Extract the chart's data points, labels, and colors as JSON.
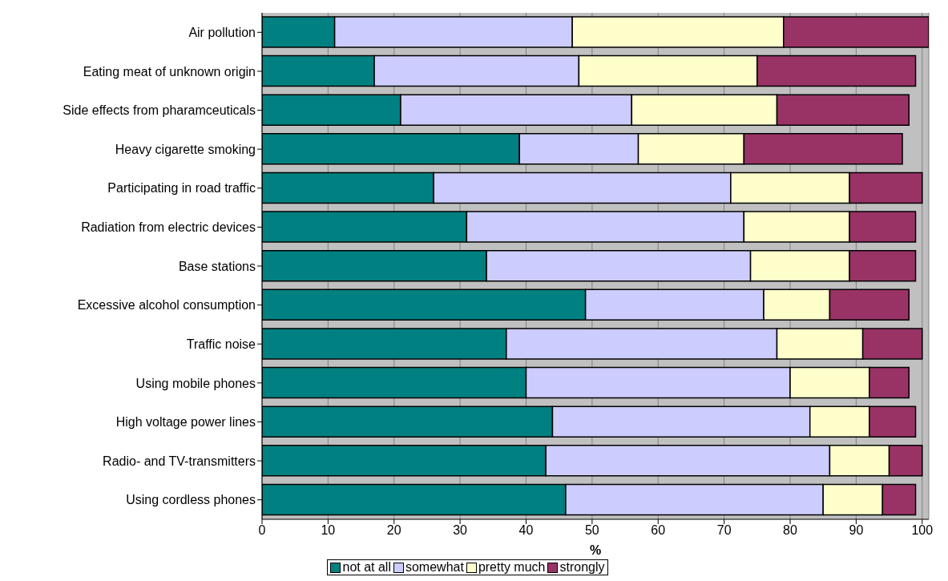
{
  "chart_data": {
    "type": "bar",
    "orientation": "horizontal",
    "stacked": true,
    "xlabel": "%",
    "categories": [
      "Air pollution",
      "Eating meat of unknown origin",
      "Side effects from pharamceuticals",
      "Heavy cigarette smoking",
      "Participating in road traffic",
      "Radiation from electric devices",
      "Base stations",
      "Excessive alcohol consumption",
      "Traffic noise",
      "Using mobile phones",
      "High voltage power lines",
      "Radio- and TV-transmitters",
      "Using cordless phones"
    ],
    "series": [
      {
        "name": "not at all",
        "color": "#008080",
        "values": [
          11,
          17,
          21,
          39,
          26,
          31,
          34,
          49,
          37,
          40,
          44,
          43,
          46
        ]
      },
      {
        "name": "somewhat",
        "color": "#ccccff",
        "values": [
          36,
          31,
          35,
          18,
          45,
          42,
          40,
          27,
          41,
          40,
          39,
          43,
          39
        ]
      },
      {
        "name": "pretty much",
        "color": "#ffffcc",
        "values": [
          32,
          27,
          22,
          16,
          18,
          16,
          15,
          10,
          13,
          12,
          9,
          9,
          9
        ]
      },
      {
        "name": "strongly",
        "color": "#993366",
        "values": [
          22,
          24,
          20,
          24,
          11,
          10,
          10,
          12,
          9,
          6,
          7,
          5,
          5
        ]
      }
    ],
    "xlim": [
      0,
      101
    ],
    "xticks": [
      0,
      10,
      20,
      30,
      40,
      50,
      60,
      70,
      80,
      90,
      100
    ],
    "grid": "x",
    "legend": "bottom"
  }
}
